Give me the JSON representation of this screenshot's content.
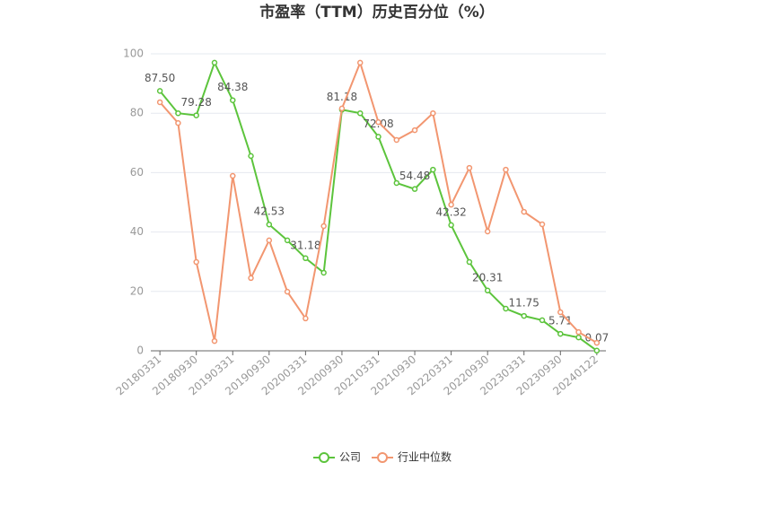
{
  "chart_data": {
    "type": "line",
    "title": "市盈率（TTM）历史百分位（%）",
    "categories": [
      "20180331",
      null,
      "20180930",
      null,
      "20190331",
      null,
      "20190930",
      null,
      "20200331",
      null,
      "20200930",
      null,
      "20210331",
      null,
      "20210930",
      null,
      "20220331",
      null,
      "20220930",
      null,
      "20230331",
      null,
      "20230930",
      null,
      "20240122"
    ],
    "series": [
      {
        "name": "公司",
        "color": "#5cc43c",
        "values": [
          87.5,
          80,
          79.28,
          97,
          84.38,
          65.6,
          42.53,
          37.2,
          31.18,
          26.3,
          81.18,
          80,
          72.08,
          56.5,
          54.48,
          61,
          42.32,
          29.9,
          20.31,
          14.2,
          11.75,
          10.3,
          5.71,
          4.5,
          0.07
        ],
        "value_labels": [
          "87.50",
          null,
          "79.28",
          null,
          "84.38",
          null,
          "42.53",
          null,
          "31.18",
          null,
          "81.18",
          null,
          "72.08",
          null,
          "54.48",
          null,
          "42.32",
          null,
          "20.31",
          null,
          "11.75",
          null,
          "5.71",
          null,
          "0.07"
        ]
      },
      {
        "name": "行业中位数",
        "color": "#f29670",
        "values": [
          83.7,
          76.7,
          29.9,
          3.3,
          58.9,
          24.5,
          37.2,
          19.9,
          10.9,
          42,
          81.6,
          97,
          77,
          71,
          74.3,
          80,
          49.2,
          61.6,
          40.2,
          61,
          46.8,
          42.6,
          13,
          6.3,
          2.7
        ]
      }
    ],
    "ylim": [
      0,
      100
    ],
    "yticks": [
      0,
      20,
      40,
      60,
      80,
      100
    ],
    "grid": true,
    "legend": "bottom"
  }
}
